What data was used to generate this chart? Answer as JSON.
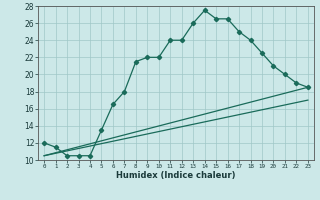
{
  "line1_x": [
    0,
    1,
    2,
    3,
    4,
    5,
    6,
    7,
    8,
    9,
    10,
    11,
    12,
    13,
    14,
    15,
    16,
    17,
    18,
    19,
    20,
    21,
    22,
    23
  ],
  "line1_y": [
    12,
    11.5,
    10.5,
    10.5,
    10.5,
    13.5,
    16.5,
    18,
    21.5,
    22,
    22,
    24,
    24,
    26,
    27.5,
    26.5,
    26.5,
    25,
    24,
    22.5,
    21,
    20,
    19,
    18.5
  ],
  "line2_x": [
    0,
    23
  ],
  "line2_y": [
    10.5,
    18.5
  ],
  "line3_x": [
    0,
    23
  ],
  "line3_y": [
    10.5,
    17.0
  ],
  "color": "#1a6b5a",
  "bg_color": "#cce8e8",
  "grid_color": "#a0c8c8",
  "xlabel": "Humidex (Indice chaleur)",
  "xlim": [
    -0.5,
    23.5
  ],
  "ylim": [
    10,
    28
  ],
  "yticks": [
    10,
    12,
    14,
    16,
    18,
    20,
    22,
    24,
    26,
    28
  ],
  "xticks": [
    0,
    1,
    2,
    3,
    4,
    5,
    6,
    7,
    8,
    9,
    10,
    11,
    12,
    13,
    14,
    15,
    16,
    17,
    18,
    19,
    20,
    21,
    22,
    23
  ],
  "xtick_labels": [
    "0",
    "1",
    "2",
    "3",
    "4",
    "5",
    "6",
    "7",
    "8",
    "9",
    "10",
    "11",
    "12",
    "13",
    "14",
    "15",
    "16",
    "17",
    "18",
    "19",
    "20",
    "21",
    "22",
    "23"
  ]
}
